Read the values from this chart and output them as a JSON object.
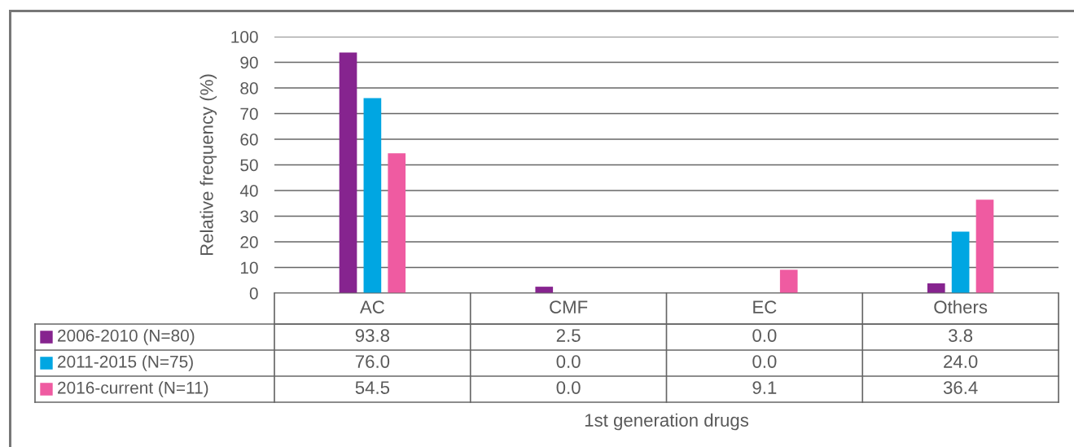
{
  "chart_data": {
    "type": "bar",
    "ylabel": "Relative frequency (%)",
    "categories": [
      "AC",
      "CMF",
      "EC",
      "Others"
    ],
    "series": [
      {
        "name": "2006-2010 (N=80)",
        "color": "#86248f",
        "values": [
          93.8,
          2.5,
          0.0,
          3.8
        ],
        "value_labels": [
          "93.8",
          "2.5",
          "0.0",
          "3.8"
        ]
      },
      {
        "name": "2011-2015 (N=75)",
        "color": "#00a6e2",
        "values": [
          76.0,
          0.0,
          0.0,
          24.0
        ],
        "value_labels": [
          "76.0",
          "0.0",
          "0.0",
          "24.0"
        ]
      },
      {
        "name": "2016-current (N=11)",
        "color": "#ef5ba1",
        "values": [
          54.5,
          0.0,
          9.1,
          36.4
        ],
        "value_labels": [
          "54.5",
          "0.0",
          "9.1",
          "36.4"
        ]
      }
    ],
    "ylim": [
      0,
      100
    ],
    "yticks": [
      0,
      10,
      20,
      30,
      40,
      50,
      60,
      70,
      80,
      90,
      100
    ],
    "grid": "y",
    "legend": "bottom",
    "annotations": [
      "1st generation drugs"
    ]
  }
}
